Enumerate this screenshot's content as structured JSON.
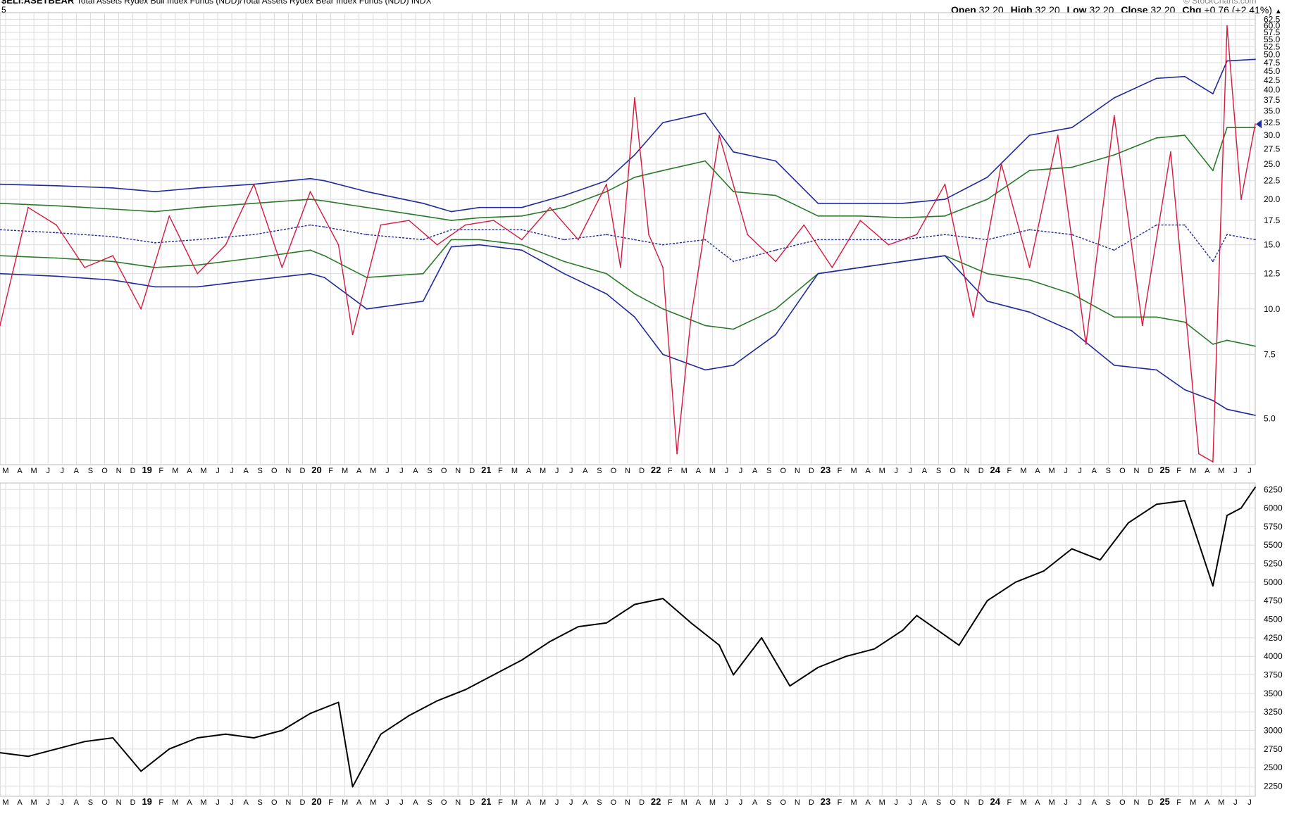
{
  "header": {
    "symbol": "$ELI:ASETBEAR",
    "description": "Total Assets Rydex Bull Index Funds (NDD)/Total Assets Rydex Bear Index Funds (NDD) INDX",
    "subline": "5",
    "watermark": "© StockCharts.com",
    "ohlc": {
      "open_label": "Open",
      "open": "32.20",
      "high_label": "High",
      "high": "32.20",
      "low_label": "Low",
      "low": "32.20",
      "close_label": "Close",
      "close": "32.20",
      "chg_label": "Chg",
      "chg": "+0.76 (+2.41%)",
      "chg_arrow": "▲"
    }
  },
  "colors": {
    "ratio_line": "#d6193e",
    "bollinger_outer": "#1f2a9e",
    "bollinger_inner": "#2a7a2a",
    "middle_band": "#1f2a9e",
    "price_line": "#000000",
    "grid": "#dcdcdc",
    "background": "#ffffff"
  },
  "chart_data": [
    {
      "type": "line",
      "panel": "ratio",
      "y_scale": "log",
      "ylim": [
        3.8,
        64
      ],
      "y_ticks": [
        "62.5",
        "60.0",
        "57.5",
        "55.0",
        "52.5",
        "50.0",
        "47.5",
        "45.0",
        "42.5",
        "40.0",
        "37.5",
        "35.0",
        "32.5",
        "30.0",
        "27.5",
        "25.0",
        "22.5",
        "20.0",
        "17.5",
        "15.0",
        "12.5",
        "10.0",
        "7.5",
        "5.0"
      ],
      "x_range": [
        "2018-02",
        "2025-07"
      ],
      "x_tick_labels": [
        "M",
        "A",
        "M",
        "J",
        "J",
        "A",
        "S",
        "O",
        "N",
        "D",
        "19",
        "F",
        "M",
        "A",
        "M",
        "J",
        "J",
        "A",
        "S",
        "O",
        "N",
        "D",
        "20",
        "F",
        "M",
        "A",
        "M",
        "J",
        "J",
        "A",
        "S",
        "O",
        "N",
        "D",
        "21",
        "F",
        "M",
        "A",
        "M",
        "J",
        "J",
        "A",
        "S",
        "O",
        "N",
        "D",
        "22",
        "F",
        "M",
        "A",
        "M",
        "J",
        "J",
        "A",
        "S",
        "O",
        "N",
        "D",
        "23",
        "F",
        "M",
        "A",
        "M",
        "J",
        "J",
        "A",
        "S",
        "O",
        "N",
        "D",
        "24",
        "F",
        "M",
        "A",
        "M",
        "J",
        "J",
        "A",
        "S",
        "O",
        "N",
        "D",
        "25",
        "F",
        "M",
        "A",
        "M",
        "J",
        "J"
      ],
      "last_value": 32.2,
      "series": [
        {
          "role": "upper_outer_band",
          "x": [
            "2018-02",
            "2018-06",
            "2018-10",
            "2019-01",
            "2019-04",
            "2019-08",
            "2019-12",
            "2020-01",
            "2020-04",
            "2020-08",
            "2020-10",
            "2020-12",
            "2021-03",
            "2021-06",
            "2021-09",
            "2021-11",
            "2022-01",
            "2022-04",
            "2022-06",
            "2022-09",
            "2022-12",
            "2023-03",
            "2023-06",
            "2023-09",
            "2023-12",
            "2024-03",
            "2024-06",
            "2024-09",
            "2024-12",
            "2025-02",
            "2025-04",
            "2025-05",
            "2025-07"
          ],
          "values": [
            22.0,
            21.8,
            21.5,
            21.0,
            21.5,
            22.0,
            22.8,
            22.5,
            21.0,
            19.5,
            18.5,
            19.0,
            19.0,
            20.5,
            22.5,
            26.5,
            32.5,
            34.5,
            27.0,
            25.5,
            19.5,
            19.5,
            19.5,
            20.0,
            23.0,
            30.0,
            31.5,
            38.0,
            43.0,
            43.5,
            39.0,
            48.0,
            48.5
          ]
        },
        {
          "role": "upper_inner_band",
          "x": [
            "2018-02",
            "2018-06",
            "2018-10",
            "2019-01",
            "2019-04",
            "2019-08",
            "2019-12",
            "2020-01",
            "2020-04",
            "2020-08",
            "2020-10",
            "2020-12",
            "2021-03",
            "2021-06",
            "2021-09",
            "2021-11",
            "2022-01",
            "2022-04",
            "2022-06",
            "2022-09",
            "2022-12",
            "2023-03",
            "2023-06",
            "2023-09",
            "2023-12",
            "2024-03",
            "2024-06",
            "2024-09",
            "2024-12",
            "2025-02",
            "2025-04",
            "2025-05",
            "2025-07"
          ],
          "values": [
            19.5,
            19.2,
            18.8,
            18.5,
            19.0,
            19.5,
            20.0,
            19.8,
            19.0,
            18.0,
            17.5,
            17.8,
            18.0,
            19.0,
            21.0,
            23.0,
            24.0,
            25.5,
            21.0,
            20.5,
            18.0,
            18.0,
            17.8,
            18.0,
            20.0,
            24.0,
            24.5,
            26.5,
            29.5,
            30.0,
            24.0,
            31.5,
            31.5
          ]
        },
        {
          "role": "middle_band",
          "x": [
            "2018-02",
            "2018-06",
            "2018-10",
            "2019-01",
            "2019-04",
            "2019-08",
            "2019-12",
            "2020-01",
            "2020-04",
            "2020-08",
            "2020-10",
            "2020-12",
            "2021-03",
            "2021-06",
            "2021-09",
            "2021-11",
            "2022-01",
            "2022-04",
            "2022-06",
            "2022-09",
            "2022-12",
            "2023-03",
            "2023-06",
            "2023-09",
            "2023-12",
            "2024-03",
            "2024-06",
            "2024-09",
            "2024-12",
            "2025-02",
            "2025-04",
            "2025-05",
            "2025-07"
          ],
          "values": [
            16.5,
            16.2,
            15.8,
            15.2,
            15.5,
            16.0,
            17.0,
            16.8,
            16.0,
            15.5,
            16.5,
            16.5,
            16.5,
            15.5,
            16.0,
            15.5,
            15.0,
            15.5,
            13.5,
            14.5,
            15.5,
            15.5,
            15.5,
            16.0,
            15.5,
            16.5,
            16.0,
            14.5,
            17.0,
            17.0,
            13.5,
            16.0,
            15.5
          ]
        },
        {
          "role": "lower_inner_band",
          "x": [
            "2018-02",
            "2018-06",
            "2018-10",
            "2019-01",
            "2019-04",
            "2019-08",
            "2019-12",
            "2020-01",
            "2020-04",
            "2020-08",
            "2020-10",
            "2020-12",
            "2021-03",
            "2021-06",
            "2021-09",
            "2021-11",
            "2022-01",
            "2022-04",
            "2022-06",
            "2022-09",
            "2022-12",
            "2023-03",
            "2023-06",
            "2023-09",
            "2023-12",
            "2024-03",
            "2024-06",
            "2024-09",
            "2024-12",
            "2025-02",
            "2025-04",
            "2025-05",
            "2025-07"
          ],
          "values": [
            14.0,
            13.8,
            13.5,
            13.0,
            13.2,
            13.8,
            14.5,
            14.0,
            12.2,
            12.5,
            15.5,
            15.5,
            15.0,
            13.5,
            12.5,
            11.0,
            10.0,
            9.0,
            8.8,
            10.0,
            12.5,
            13.0,
            13.5,
            14.0,
            12.5,
            12.0,
            11.0,
            9.5,
            9.5,
            9.2,
            8.0,
            8.2,
            7.9
          ]
        },
        {
          "role": "lower_outer_band",
          "x": [
            "2018-02",
            "2018-06",
            "2018-10",
            "2019-01",
            "2019-04",
            "2019-08",
            "2019-12",
            "2020-01",
            "2020-04",
            "2020-08",
            "2020-10",
            "2020-12",
            "2021-03",
            "2021-06",
            "2021-09",
            "2021-11",
            "2022-01",
            "2022-04",
            "2022-06",
            "2022-09",
            "2022-12",
            "2023-03",
            "2023-06",
            "2023-09",
            "2023-12",
            "2024-03",
            "2024-06",
            "2024-09",
            "2024-12",
            "2025-02",
            "2025-04",
            "2025-05",
            "2025-07"
          ],
          "values": [
            12.5,
            12.3,
            12.0,
            11.5,
            11.5,
            12.0,
            12.5,
            12.2,
            10.0,
            10.5,
            14.8,
            15.0,
            14.5,
            12.5,
            11.0,
            9.5,
            7.5,
            6.8,
            7.0,
            8.5,
            12.5,
            13.0,
            13.5,
            14.0,
            10.5,
            9.8,
            8.7,
            7.0,
            6.8,
            6.0,
            5.6,
            5.3,
            5.1
          ]
        },
        {
          "role": "ratio",
          "x": [
            "2018-02",
            "2018-04",
            "2018-06",
            "2018-08",
            "2018-10",
            "2018-12",
            "2019-02",
            "2019-04",
            "2019-06",
            "2019-08",
            "2019-10",
            "2019-12",
            "2020-02",
            "2020-03",
            "2020-05",
            "2020-07",
            "2020-09",
            "2020-11",
            "2021-01",
            "2021-03",
            "2021-05",
            "2021-07",
            "2021-09",
            "2021-10",
            "2021-11",
            "2021-12",
            "2022-01",
            "2022-02",
            "2022-03",
            "2022-05",
            "2022-07",
            "2022-09",
            "2022-11",
            "2023-01",
            "2023-03",
            "2023-05",
            "2023-07",
            "2023-09",
            "2023-11",
            "2024-01",
            "2024-03",
            "2024-05",
            "2024-07",
            "2024-09",
            "2024-11",
            "2025-01",
            "2025-03",
            "2025-04",
            "2025-05",
            "2025-06",
            "2025-07"
          ],
          "values": [
            9.0,
            19.0,
            17.0,
            13.0,
            14.0,
            10.0,
            18.0,
            12.5,
            15.0,
            22.0,
            13.0,
            21.0,
            15.0,
            8.5,
            17.0,
            17.5,
            15.0,
            17.0,
            17.5,
            15.5,
            19.0,
            15.5,
            22.0,
            13.0,
            38.0,
            16.0,
            13.0,
            4.0,
            9.5,
            30.0,
            16.0,
            13.5,
            17.0,
            13.0,
            17.5,
            15.0,
            16.0,
            22.0,
            9.5,
            25.0,
            13.0,
            30.0,
            8.0,
            34.0,
            9.0,
            27.0,
            4.0,
            3.8,
            60.0,
            20.0,
            32.2
          ]
        }
      ]
    },
    {
      "type": "line",
      "panel": "price",
      "ylim": [
        2150,
        6300
      ],
      "y_ticks": [
        "6250",
        "6000",
        "5750",
        "5500",
        "5250",
        "5000",
        "4750",
        "4500",
        "4250",
        "4000",
        "3750",
        "3500",
        "3250",
        "3000",
        "2750",
        "2500",
        "2250"
      ],
      "x_range": [
        "2018-02",
        "2025-07"
      ],
      "x_tick_labels": [
        "M",
        "A",
        "M",
        "J",
        "J",
        "A",
        "S",
        "O",
        "N",
        "D",
        "19",
        "F",
        "M",
        "A",
        "M",
        "J",
        "J",
        "A",
        "S",
        "O",
        "N",
        "D",
        "20",
        "F",
        "M",
        "A",
        "M",
        "J",
        "J",
        "A",
        "S",
        "O",
        "N",
        "D",
        "21",
        "F",
        "M",
        "A",
        "M",
        "J",
        "J",
        "A",
        "S",
        "O",
        "N",
        "D",
        "22",
        "F",
        "M",
        "A",
        "M",
        "J",
        "J",
        "A",
        "S",
        "O",
        "N",
        "D",
        "23",
        "F",
        "M",
        "A",
        "M",
        "J",
        "J",
        "A",
        "S",
        "O",
        "N",
        "D",
        "24",
        "F",
        "M",
        "A",
        "M",
        "J",
        "J",
        "A",
        "S",
        "O",
        "N",
        "D",
        "25",
        "F",
        "M",
        "A",
        "M",
        "J",
        "J"
      ],
      "series": [
        {
          "role": "price",
          "x": [
            "2018-02",
            "2018-04",
            "2018-06",
            "2018-08",
            "2018-10",
            "2018-12",
            "2019-02",
            "2019-04",
            "2019-06",
            "2019-08",
            "2019-10",
            "2019-12",
            "2020-02",
            "2020-03",
            "2020-05",
            "2020-07",
            "2020-09",
            "2020-11",
            "2021-01",
            "2021-03",
            "2021-05",
            "2021-07",
            "2021-09",
            "2021-11",
            "2022-01",
            "2022-03",
            "2022-05",
            "2022-06",
            "2022-08",
            "2022-10",
            "2022-12",
            "2023-02",
            "2023-04",
            "2023-06",
            "2023-07",
            "2023-10",
            "2023-12",
            "2024-02",
            "2024-04",
            "2024-06",
            "2024-08",
            "2024-10",
            "2024-12",
            "2025-02",
            "2025-04",
            "2025-05",
            "2025-06",
            "2025-07"
          ],
          "values": [
            2700,
            2650,
            2750,
            2850,
            2900,
            2450,
            2750,
            2900,
            2950,
            2900,
            3000,
            3230,
            3380,
            2240,
            2950,
            3200,
            3400,
            3550,
            3750,
            3950,
            4200,
            4400,
            4450,
            4700,
            4780,
            4450,
            4150,
            3750,
            4250,
            3600,
            3850,
            4000,
            4100,
            4350,
            4550,
            4150,
            4750,
            5000,
            5150,
            5450,
            5300,
            5800,
            6050,
            6100,
            4950,
            5900,
            6000,
            6280
          ]
        }
      ]
    }
  ]
}
